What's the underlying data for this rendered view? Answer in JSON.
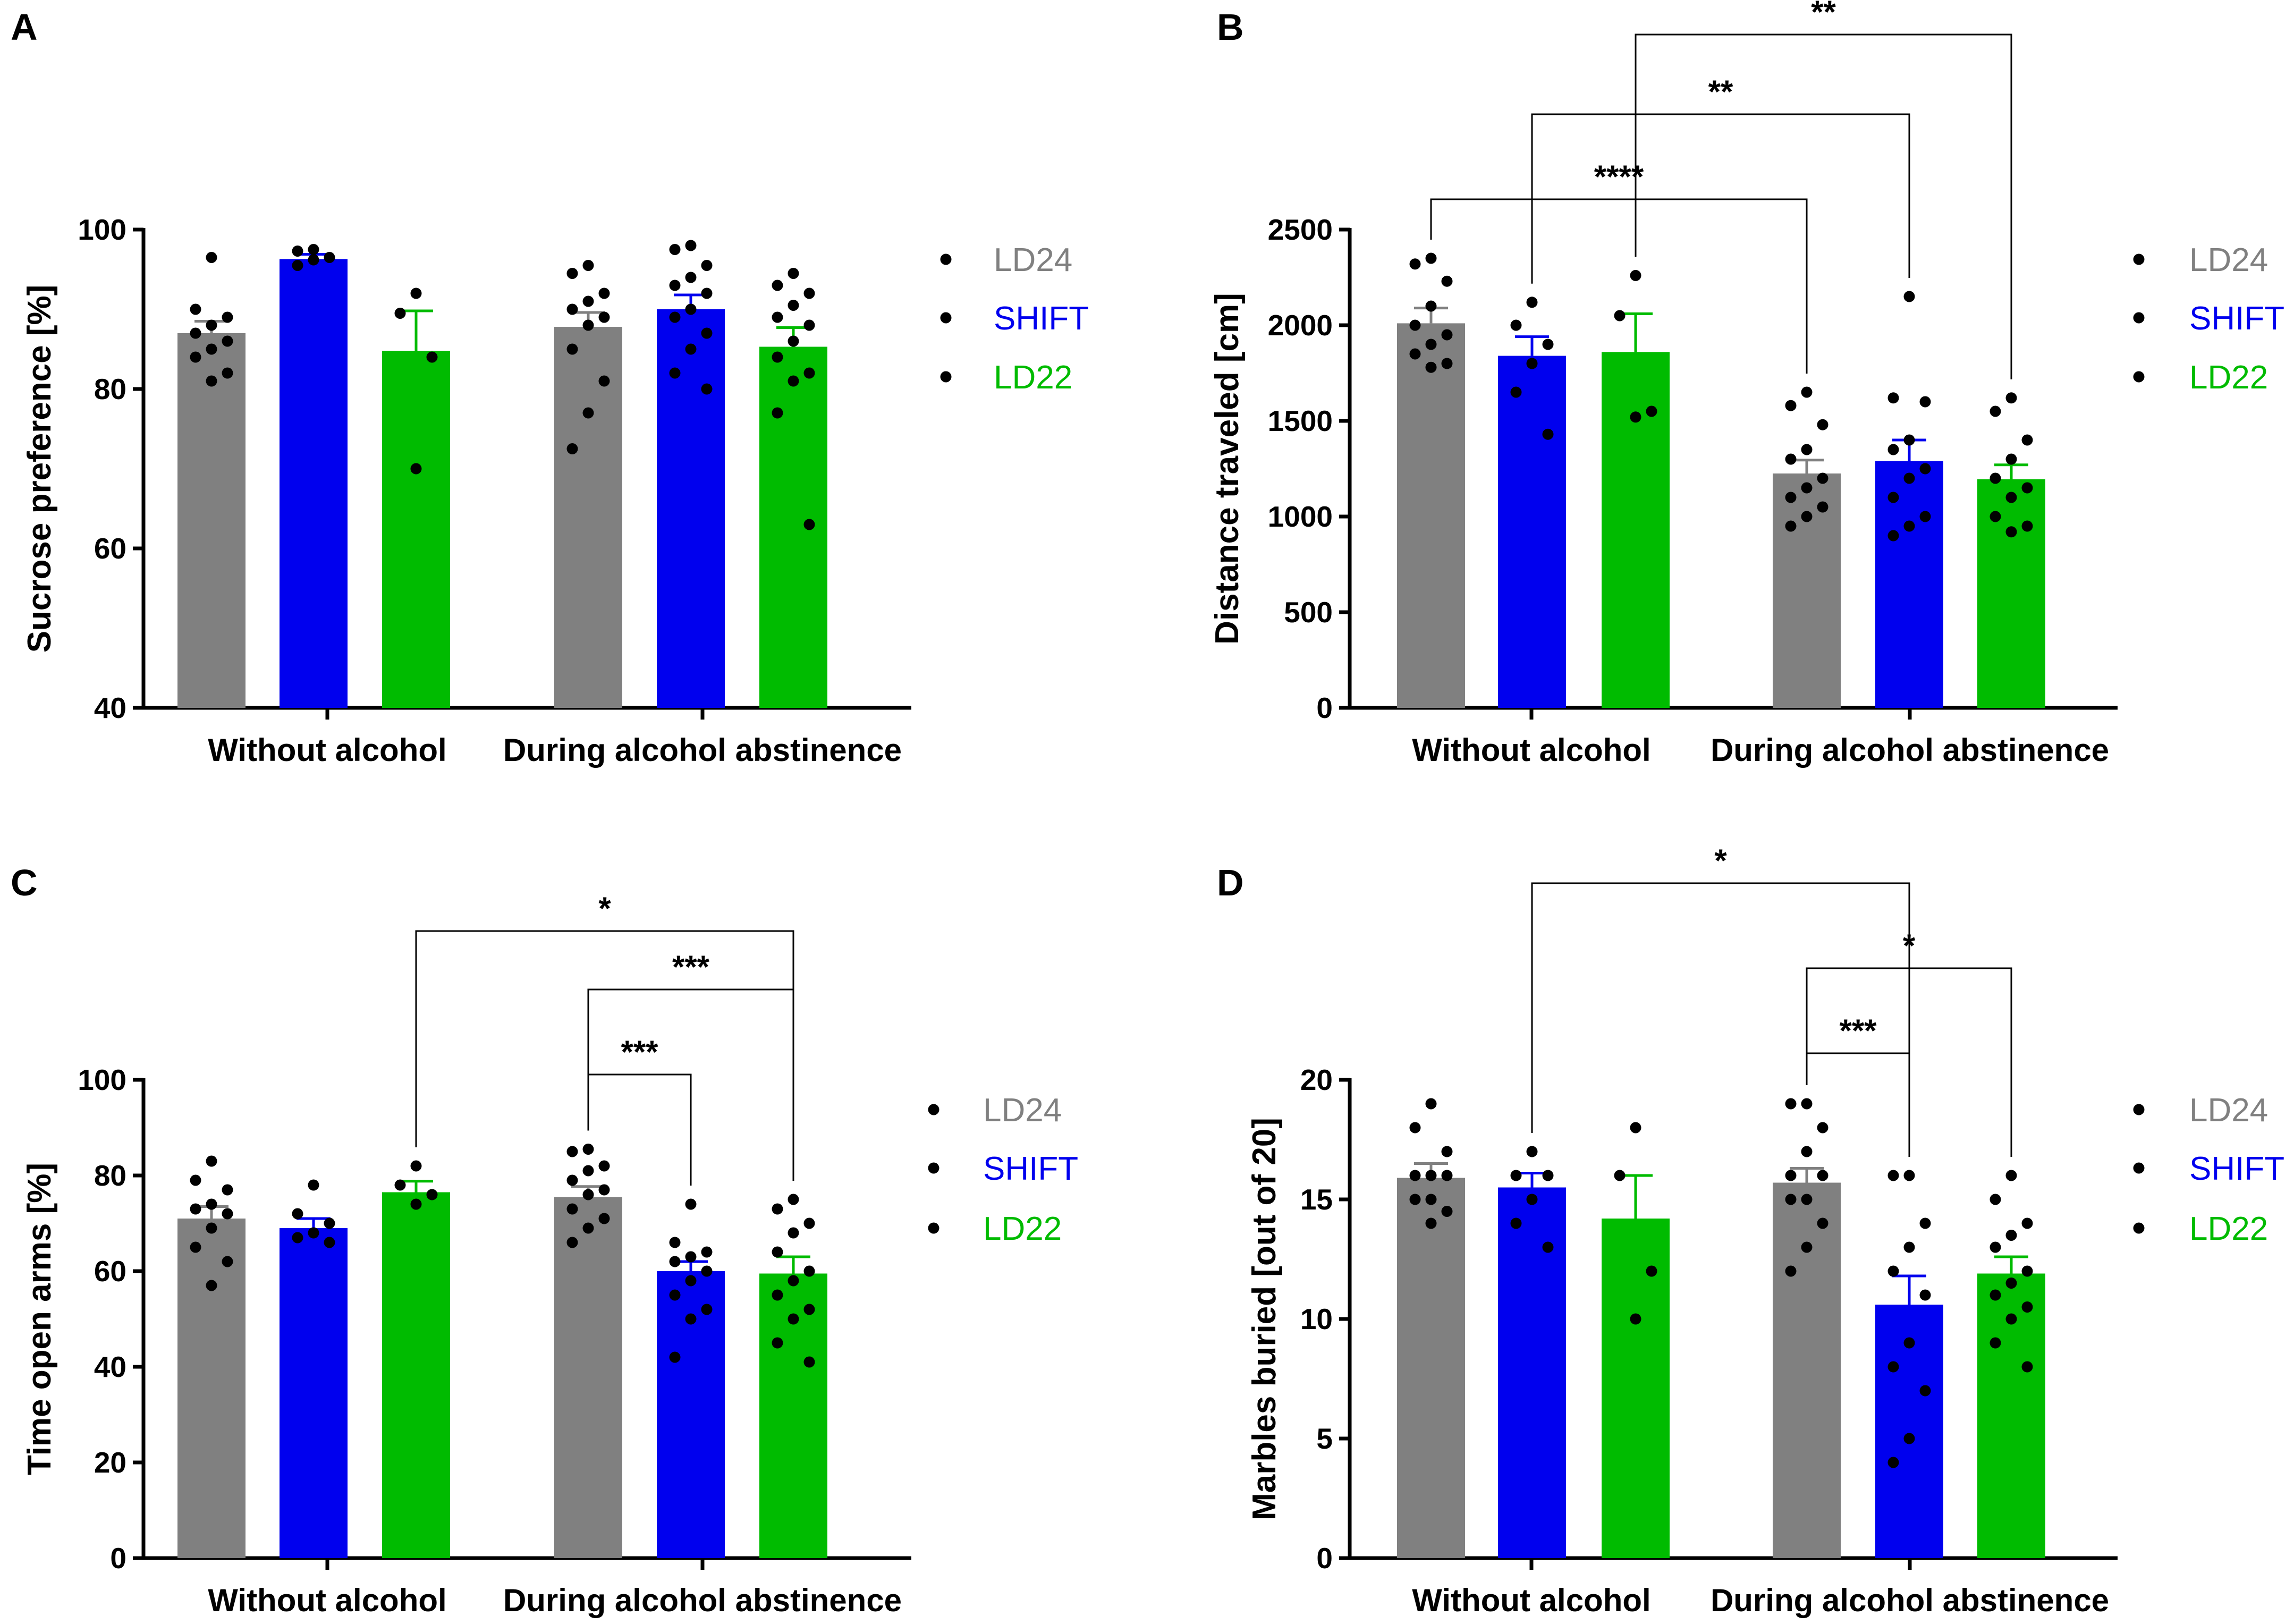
{
  "figure": {
    "colors": {
      "LD24": "#808080",
      "SHIFT": "#0000ee",
      "LD22": "#00bb00",
      "axis": "#000000",
      "point": "#000000"
    }
  },
  "chart_data": [
    {
      "type": "bar",
      "panel": "A",
      "ylabel": "Sucrose preference [%]",
      "ylim": [
        40,
        100
      ],
      "yticks": [
        40,
        60,
        80,
        100
      ],
      "groups": [
        "Without alcohol",
        "During alcohol abstinence"
      ],
      "legend": [
        "LD24",
        "SHIFT",
        "LD22"
      ],
      "series": [
        {
          "name": "LD24",
          "values": [
            87.0,
            87.8
          ],
          "errors": [
            1.5,
            1.8
          ],
          "points": [
            [
              96.5,
              90,
              89,
              88,
              87,
              86,
              85,
              84,
              82,
              81
            ],
            [
              95.5,
              94.5,
              92,
              91,
              90,
              89,
              88,
              85,
              81,
              77,
              72.5
            ]
          ]
        },
        {
          "name": "SHIFT",
          "values": [
            96.3,
            90.0
          ],
          "errors": [
            0.6,
            1.8
          ],
          "points": [
            [
              97.5,
              97.3,
              96.5,
              96.2,
              95.5
            ],
            [
              98,
              97.5,
              95.5,
              94,
              93,
              92,
              90,
              89,
              87,
              85,
              82,
              80
            ]
          ]
        },
        {
          "name": "LD22",
          "values": [
            84.8,
            85.3
          ],
          "errors": [
            5.0,
            2.4
          ],
          "points": [
            [
              92,
              89.5,
              84,
              70
            ],
            [
              94.5,
              93,
              92,
              90.5,
              89,
              88,
              86,
              84,
              82,
              81,
              77,
              63
            ]
          ]
        }
      ],
      "significance": []
    },
    {
      "type": "bar",
      "panel": "B",
      "ylabel": "Distance traveled [cm]",
      "ylim": [
        0,
        2500
      ],
      "yticks": [
        0,
        500,
        1000,
        1500,
        2000,
        2500
      ],
      "groups": [
        "Without alcohol",
        "During alcohol abstinence"
      ],
      "legend": [
        "LD24",
        "SHIFT",
        "LD22"
      ],
      "series": [
        {
          "name": "LD24",
          "values": [
            2010,
            1225
          ],
          "errors": [
            80,
            70
          ],
          "points": [
            [
              2350,
              2320,
              2230,
              2100,
              2000,
              1950,
              1900,
              1850,
              1800,
              1780
            ],
            [
              1650,
              1580,
              1480,
              1350,
              1300,
              1200,
              1150,
              1100,
              1050,
              1000,
              950
            ]
          ]
        },
        {
          "name": "SHIFT",
          "values": [
            1840,
            1290
          ],
          "errors": [
            100,
            110
          ],
          "points": [
            [
              2120,
              2000,
              1900,
              1800,
              1650,
              1430
            ],
            [
              2150,
              1620,
              1600,
              1400,
              1350,
              1250,
              1200,
              1100,
              1000,
              950,
              900
            ]
          ]
        },
        {
          "name": "LD22",
          "values": [
            1860,
            1195
          ],
          "errors": [
            200,
            75
          ],
          "points": [
            [
              2260,
              2050,
              1550,
              1520
            ],
            [
              1620,
              1550,
              1400,
              1300,
              1200,
              1150,
              1100,
              1000,
              950,
              920
            ]
          ]
        }
      ],
      "significance": [
        {
          "from": "LD24 Without alcohol",
          "to": "LD24 During alcohol abstinence",
          "label": "****"
        },
        {
          "from": "SHIFT Without alcohol",
          "to": "SHIFT During alcohol abstinence",
          "label": "**"
        },
        {
          "from": "LD22 Without alcohol",
          "to": "LD22 During alcohol abstinence",
          "label": "**"
        }
      ]
    },
    {
      "type": "bar",
      "panel": "C",
      "ylabel": "Time open arms [%]",
      "ylim": [
        0,
        100
      ],
      "yticks": [
        0,
        20,
        40,
        60,
        80,
        100
      ],
      "groups": [
        "Without alcohol",
        "During alcohol abstinence"
      ],
      "legend": [
        "LD24",
        "SHIFT",
        "LD22"
      ],
      "series": [
        {
          "name": "LD24",
          "values": [
            71,
            75.5
          ],
          "errors": [
            2.5,
            2.2
          ],
          "points": [
            [
              83,
              79,
              77,
              74,
              73,
              72,
              69,
              65,
              62,
              57
            ],
            [
              85.5,
              85,
              82,
              81,
              79,
              77,
              76,
              73,
              71,
              69,
              66
            ]
          ]
        },
        {
          "name": "SHIFT",
          "values": [
            69,
            60
          ],
          "errors": [
            2.0,
            2.0
          ],
          "points": [
            [
              78,
              72,
              70,
              68,
              67,
              66
            ],
            [
              74,
              66,
              64,
              63,
              62,
              60,
              58,
              55,
              52,
              50,
              42
            ]
          ]
        },
        {
          "name": "LD22",
          "values": [
            76.5,
            59.5
          ],
          "errors": [
            2.3,
            3.5
          ],
          "points": [
            [
              82,
              78,
              76,
              74
            ],
            [
              75,
              73,
              70,
              68,
              64,
              60,
              58,
              55,
              52,
              50,
              45,
              41
            ]
          ]
        }
      ],
      "significance": [
        {
          "from": "LD22 Without alcohol",
          "to": "LD22 During alcohol abstinence",
          "label": "*"
        },
        {
          "from": "LD24 During alcohol abstinence",
          "to": "LD22 During alcohol abstinence",
          "label": "***"
        },
        {
          "from": "LD24 During alcohol abstinence",
          "to": "SHIFT During alcohol abstinence",
          "label": "***"
        }
      ]
    },
    {
      "type": "bar",
      "panel": "D",
      "ylabel": "Marbles buried [out of 20]",
      "ylim": [
        0,
        20
      ],
      "yticks": [
        0,
        5,
        10,
        15,
        20
      ],
      "groups": [
        "Without alcohol",
        "During alcohol abstinence"
      ],
      "legend": [
        "LD24",
        "SHIFT",
        "LD22"
      ],
      "series": [
        {
          "name": "LD24",
          "values": [
            15.9,
            15.7
          ],
          "errors": [
            0.6,
            0.6
          ],
          "points": [
            [
              19,
              18,
              17,
              16,
              16,
              16,
              15,
              15,
              14.5,
              14
            ],
            [
              19,
              19,
              18,
              17,
              16,
              16,
              15,
              15,
              14,
              13,
              12
            ]
          ]
        },
        {
          "name": "SHIFT",
          "values": [
            15.5,
            10.6
          ],
          "errors": [
            0.6,
            1.2
          ],
          "points": [
            [
              17,
              16,
              16,
              15,
              14,
              13
            ],
            [
              16,
              16,
              14,
              13,
              12,
              11,
              9,
              8,
              7,
              5,
              4
            ]
          ]
        },
        {
          "name": "LD22",
          "values": [
            14.2,
            11.9
          ],
          "errors": [
            1.8,
            0.7
          ],
          "points": [
            [
              18,
              16,
              12,
              10
            ],
            [
              16,
              15,
              14,
              13.5,
              13,
              12,
              11.5,
              11,
              10.5,
              10,
              9,
              8
            ]
          ]
        }
      ],
      "significance": [
        {
          "from": "SHIFT Without alcohol",
          "to": "SHIFT During alcohol abstinence",
          "label": "*"
        },
        {
          "from": "LD24 During alcohol abstinence",
          "to": "LD22 During alcohol abstinence",
          "label": "*"
        },
        {
          "from": "LD24 During alcohol abstinence",
          "to": "SHIFT During alcohol abstinence",
          "label": "***"
        }
      ]
    }
  ]
}
